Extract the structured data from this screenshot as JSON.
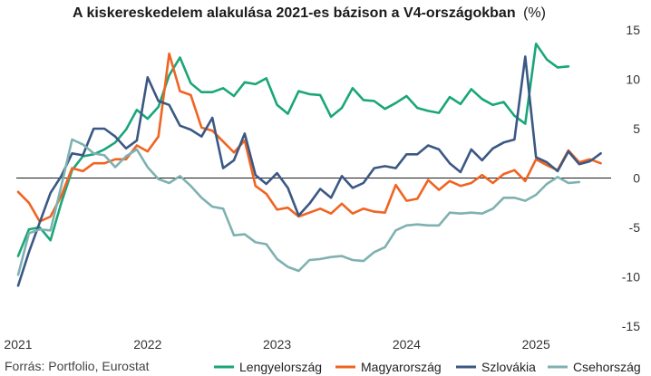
{
  "chart_data": {
    "type": "line",
    "title": "A kiskereskedelem alakulása 2021-es bázison a V4-országokban",
    "title_unit": "(%)",
    "source": "Forrás: Portfolio, Eurostat",
    "x_ticks": [
      "2021",
      "2022",
      "2023",
      "2024",
      "2025"
    ],
    "x_start": "2021-01",
    "ylim": [
      -15,
      15
    ],
    "y_ticks": [
      "15",
      "10",
      "5",
      "0",
      "-5",
      "-10",
      "-15"
    ],
    "y_axis_side": "right",
    "zero_line": true,
    "grid": false,
    "legend_position": "bottom",
    "series": [
      {
        "name": "Lengyelország",
        "color": "#1aa67a",
        "values": [
          -7.9,
          -5.2,
          -5.0,
          -6.3,
          -2.5,
          0.8,
          2.2,
          2.4,
          2.9,
          3.6,
          4.9,
          6.9,
          6.0,
          7.2,
          10.4,
          12.2,
          9.6,
          8.7,
          8.7,
          9.1,
          8.3,
          9.7,
          9.5,
          10.1,
          7.4,
          6.5,
          8.8,
          8.5,
          8.4,
          6.2,
          7.1,
          9.1,
          7.9,
          7.8,
          7.0,
          7.6,
          8.3,
          7.1,
          6.8,
          6.6,
          8.2,
          7.5,
          9.0,
          8.0,
          7.4,
          7.7,
          6.3,
          5.5,
          13.6,
          12.0,
          11.2,
          11.3
        ]
      },
      {
        "name": "Magyarország",
        "color": "#f06422",
        "values": [
          -1.4,
          -2.5,
          -4.4,
          -3.9,
          -1.8,
          1.0,
          0.7,
          1.5,
          1.5,
          1.9,
          1.9,
          3.3,
          2.7,
          4.2,
          12.6,
          8.8,
          8.4,
          5.1,
          4.8,
          3.7,
          2.6,
          3.8,
          -0.8,
          -1.6,
          -3.2,
          -3.0,
          -3.9,
          -3.5,
          -3.1,
          -3.6,
          -2.6,
          -3.6,
          -3.1,
          -3.4,
          -3.5,
          -0.7,
          -2.3,
          -2.1,
          -0.2,
          -1.2,
          -0.3,
          -0.8,
          -0.5,
          0.3,
          -0.5,
          0.4,
          0.8,
          -0.3,
          1.9,
          1.3,
          0.8,
          2.8,
          1.6,
          1.9,
          1.5
        ]
      },
      {
        "name": "Szlovákia",
        "color": "#3b5884",
        "values": [
          -10.9,
          -7.5,
          -4.5,
          -1.5,
          0.2,
          2.5,
          2.3,
          5.0,
          5.0,
          4.2,
          3.0,
          3.8,
          10.2,
          7.8,
          7.4,
          5.3,
          4.9,
          4.2,
          6.1,
          1.0,
          1.8,
          4.5,
          0.3,
          -0.6,
          0.5,
          -1.0,
          -3.8,
          -2.6,
          -1.1,
          -2.0,
          0.2,
          -1.0,
          -0.5,
          1.0,
          1.2,
          1.0,
          2.4,
          2.4,
          3.3,
          2.9,
          1.5,
          0.6,
          2.9,
          1.8,
          3.0,
          3.6,
          3.9,
          12.3,
          2.1,
          1.6,
          0.7,
          2.7,
          1.4,
          1.7,
          2.5
        ]
      },
      {
        "name": "Csehország",
        "color": "#7fb1b1",
        "values": [
          -9.8,
          -5.6,
          -5.2,
          -5.3,
          -0.8,
          3.9,
          3.4,
          2.5,
          2.3,
          1.1,
          2.2,
          2.9,
          1.1,
          -0.1,
          -0.5,
          0.2,
          -0.8,
          -2.0,
          -2.9,
          -3.1,
          -5.8,
          -5.7,
          -6.5,
          -6.7,
          -8.2,
          -9.0,
          -9.4,
          -8.3,
          -8.2,
          -8.0,
          -7.9,
          -8.3,
          -8.4,
          -7.5,
          -7.0,
          -5.3,
          -4.8,
          -4.7,
          -4.8,
          -4.8,
          -3.5,
          -3.6,
          -3.5,
          -3.6,
          -3.1,
          -2.0,
          -2.0,
          -2.3,
          -1.7,
          -0.6,
          0.1,
          -0.5,
          -0.4
        ]
      }
    ]
  }
}
